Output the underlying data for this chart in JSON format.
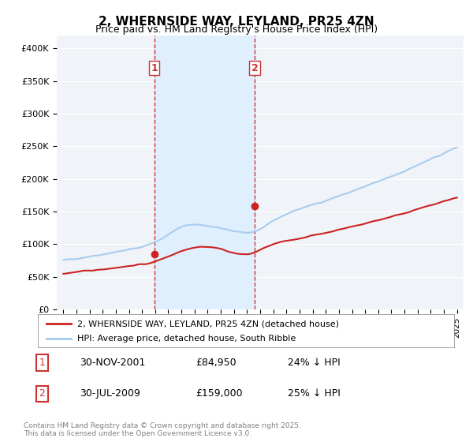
{
  "title": "2, WHERNSIDE WAY, LEYLAND, PR25 4ZN",
  "subtitle": "Price paid vs. HM Land Registry's House Price Index (HPI)",
  "ylabel_ticks": [
    "£0",
    "£50K",
    "£100K",
    "£150K",
    "£200K",
    "£250K",
    "£300K",
    "£350K",
    "£400K"
  ],
  "ytick_values": [
    0,
    50000,
    100000,
    150000,
    200000,
    250000,
    300000,
    350000,
    400000
  ],
  "ylim": [
    0,
    420000
  ],
  "xlim_start": 1994.5,
  "xlim_end": 2025.5,
  "xticks": [
    1995,
    1996,
    1997,
    1998,
    1999,
    2000,
    2001,
    2002,
    2003,
    2004,
    2005,
    2006,
    2007,
    2008,
    2009,
    2010,
    2011,
    2012,
    2013,
    2014,
    2015,
    2016,
    2017,
    2018,
    2019,
    2020,
    2021,
    2022,
    2023,
    2024,
    2025
  ],
  "hpi_color": "#aaccee",
  "price_color": "#cc2222",
  "marker1_x": 2001.92,
  "marker1_y": 84950,
  "marker2_x": 2009.58,
  "marker2_y": 159000,
  "vline1_x": 2001.92,
  "vline2_x": 2009.58,
  "shade_x1": 2001.92,
  "shade_x2": 2009.58,
  "legend_line1": "2, WHERNSIDE WAY, LEYLAND, PR25 4ZN (detached house)",
  "legend_line2": "HPI: Average price, detached house, South Ribble",
  "note1_num": "1",
  "note1_date": "30-NOV-2001",
  "note1_price": "£84,950",
  "note1_hpi": "24% ↓ HPI",
  "note2_num": "2",
  "note2_date": "30-JUL-2009",
  "note2_price": "£159,000",
  "note2_hpi": "25% ↓ HPI",
  "footer": "Contains HM Land Registry data © Crown copyright and database right 2025.\nThis data is licensed under the Open Government Licence v3.0.",
  "background_color": "#ffffff",
  "plot_bg_color": "#f0f4f8"
}
